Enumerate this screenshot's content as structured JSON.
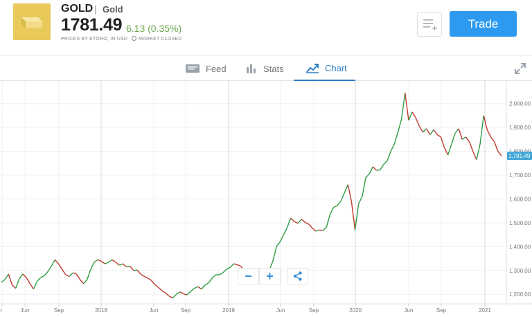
{
  "instrument": {
    "symbol": "GOLD",
    "separator": "|",
    "name": "Gold",
    "price": "1781.49",
    "change": "6.13 (0.35%)",
    "prices_note": "PRICES BY ETORO, IN USD",
    "market_status": "MARKET CLOSED",
    "icon": "gold-bars-icon"
  },
  "actions": {
    "trade_label": "Trade",
    "watchlist_icon": "add-to-watchlist-icon"
  },
  "tabs": [
    {
      "label": "Feed",
      "icon": "feed-icon"
    },
    {
      "label": "Stats",
      "icon": "bar-chart-icon"
    },
    {
      "label": "Chart",
      "icon": "line-chart-icon",
      "active": true
    }
  ],
  "colors": {
    "accent": "#2d7fc6",
    "trade_button": "#2d9af0",
    "up": "#2e9e44",
    "down": "#c0392b",
    "gain_text": "#6aa84f",
    "logo_bg": "#e8c95a"
  },
  "chart_data": {
    "type": "line",
    "x_tick_labels": [
      "r",
      "Jun",
      "Sep",
      "2018",
      "Jun",
      "Sep",
      "2019",
      "Jun",
      "Sep",
      "2020",
      "Jun",
      "Sep",
      "2021"
    ],
    "y_ticks": [
      "2,000.00",
      "1,900.00",
      "1,800.00",
      "1,700.00",
      "1,600.00",
      "1,500.00",
      "1,400.00",
      "1,300.00",
      "1,200.00"
    ],
    "y_values": [
      2000,
      1900,
      1800,
      1700,
      1600,
      1500,
      1400,
      1300,
      1200
    ],
    "ylim": [
      1160,
      2095
    ],
    "last_price_label": "1,781.49",
    "last_price": 1781.49,
    "x_index_range": [
      0,
      121
    ],
    "series": [
      {
        "values": [
          1250,
          1262,
          1285,
          1240,
          1225,
          1265,
          1285,
          1270,
          1245,
          1222,
          1255,
          1270,
          1278,
          1295,
          1318,
          1345,
          1328,
          1305,
          1282,
          1275,
          1290,
          1285,
          1262,
          1245,
          1262,
          1305,
          1335,
          1345,
          1338,
          1328,
          1335,
          1345,
          1335,
          1322,
          1328,
          1315,
          1318,
          1300,
          1302,
          1285,
          1275,
          1268,
          1258,
          1240,
          1228,
          1215,
          1205,
          1192,
          1185,
          1200,
          1210,
          1202,
          1198,
          1212,
          1225,
          1232,
          1222,
          1238,
          1248,
          1268,
          1282,
          1282,
          1290,
          1305,
          1312,
          1328,
          1325,
          1318,
          1300,
          1288,
          1285,
          1275,
          1285,
          1295,
          1282,
          1300,
          1340,
          1400,
          1420,
          1450,
          1480,
          1520,
          1505,
          1498,
          1515,
          1502,
          1495,
          1478,
          1465,
          1470,
          1468,
          1482,
          1535,
          1565,
          1572,
          1590,
          1625,
          1660,
          1590,
          1470,
          1580,
          1610,
          1690,
          1705,
          1735,
          1720,
          1722,
          1745,
          1760,
          1800,
          1830,
          1880,
          1935,
          2045,
          1930,
          1965,
          1940,
          1905,
          1880,
          1895,
          1870,
          1890,
          1870,
          1860,
          1815,
          1785,
          1830,
          1875,
          1895,
          1850,
          1860,
          1840,
          1800,
          1765,
          1830,
          1950,
          1890,
          1860,
          1840,
          1800,
          1781
        ]
      }
    ]
  },
  "chart_controls": {
    "zoom_out": "−",
    "zoom_in": "+",
    "share_icon": "share-icon"
  }
}
